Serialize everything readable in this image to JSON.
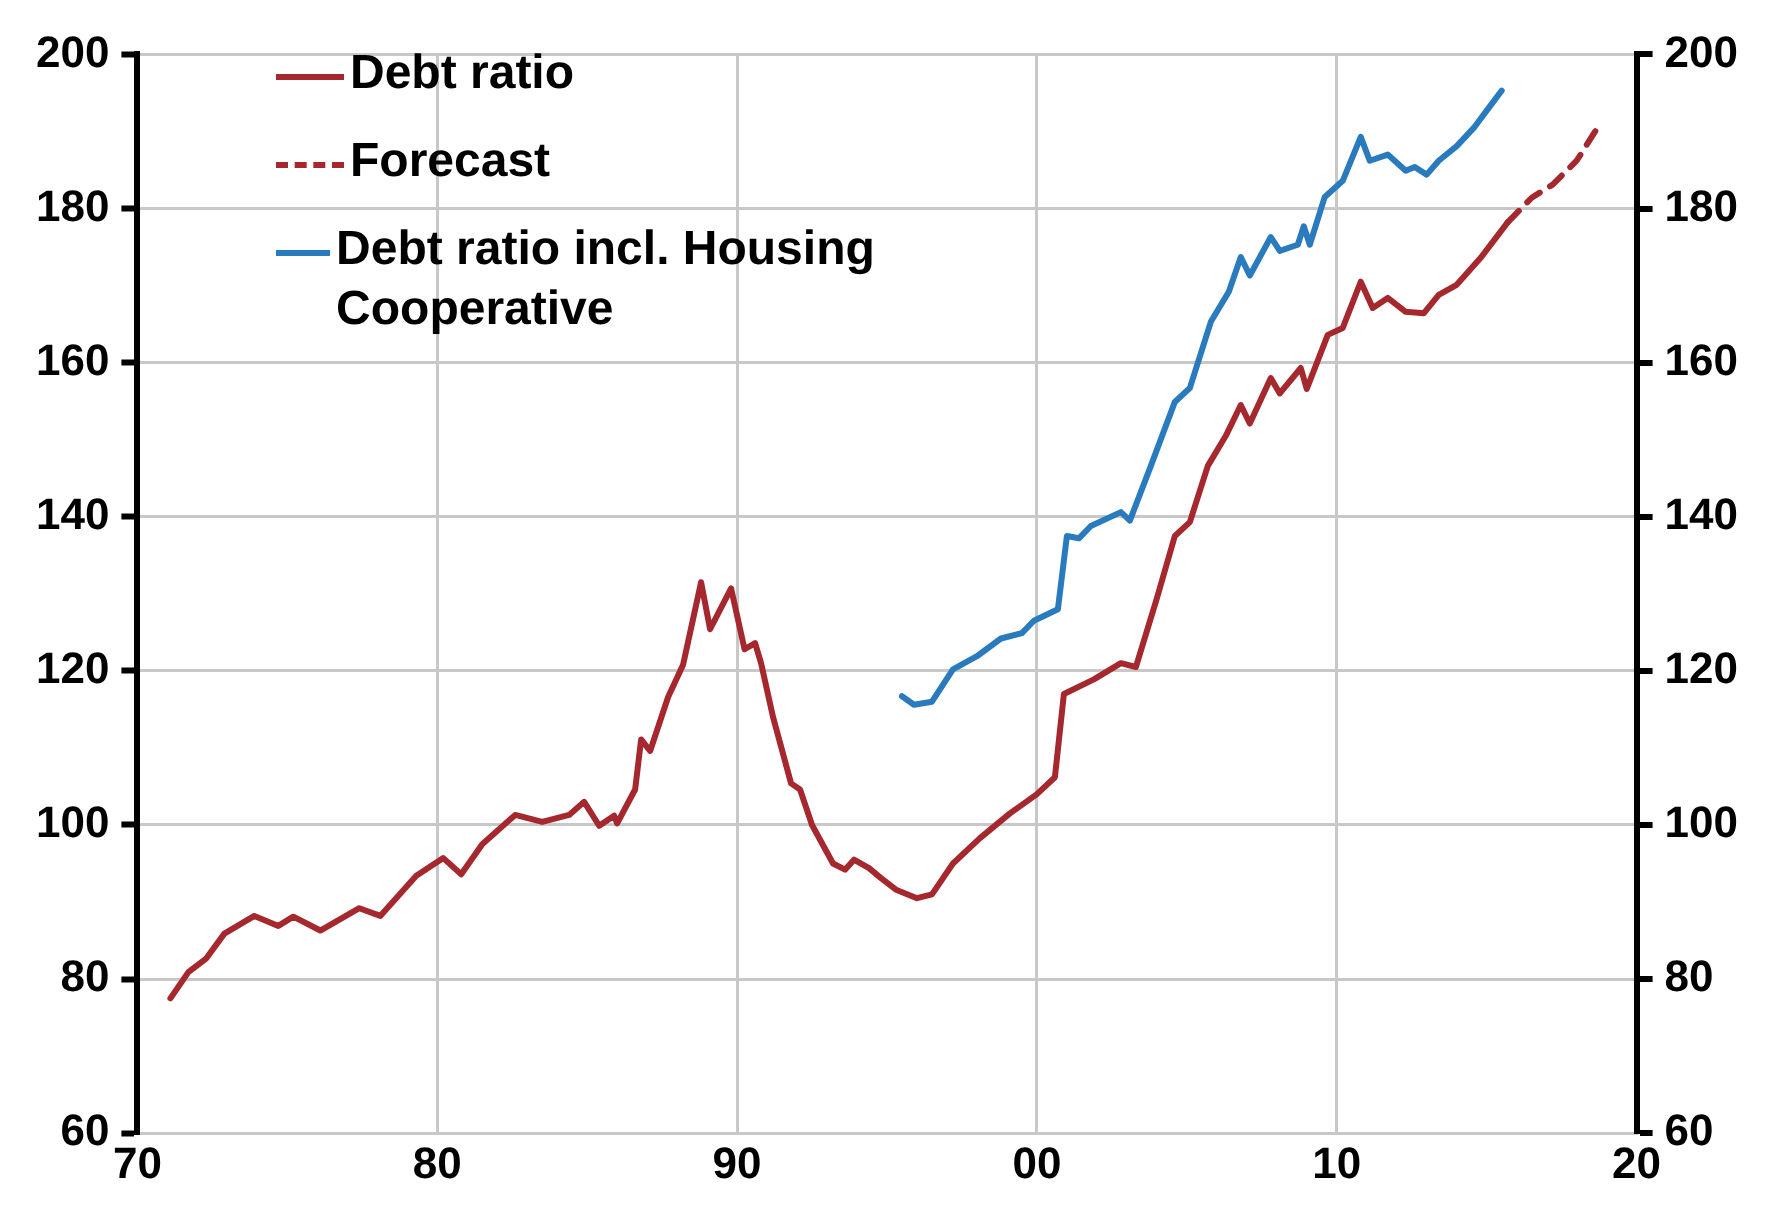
{
  "chart_data": {
    "type": "line",
    "xlim": [
      1970,
      2020
    ],
    "xticks": [
      {
        "value": 1970,
        "label": "70"
      },
      {
        "value": 1980,
        "label": "80"
      },
      {
        "value": 1990,
        "label": "90"
      },
      {
        "value": 2000,
        "label": "00"
      },
      {
        "value": 2010,
        "label": "10"
      },
      {
        "value": 2020,
        "label": "20"
      }
    ],
    "ylim": [
      60,
      200
    ],
    "yticks": [
      60,
      80,
      100,
      120,
      140,
      160,
      180,
      200
    ],
    "y2lim": [
      60,
      200
    ],
    "y2ticks": [
      60,
      80,
      100,
      120,
      140,
      160,
      180,
      200
    ],
    "grid": true,
    "legend": "top left",
    "marker": "none",
    "series": [
      {
        "name": "Debt ratio",
        "color": "#a5282e",
        "line_style": "solid",
        "x": [
          1971.1,
          1971.7,
          1972.3,
          1972.9,
          1973.9,
          1974.7,
          1975.2,
          1976.1,
          1977.4,
          1978.1,
          1979.3,
          1980.2,
          1980.8,
          1981.5,
          1982.6,
          1983.5,
          1984.4,
          1984.9,
          1985.4,
          1985.9,
          1986.0,
          1986.6,
          1986.8,
          1987.1,
          1987.7,
          1988.2,
          1988.8,
          1989.1,
          1989.8,
          1990.25,
          1990.6,
          1990.8,
          1991.2,
          1991.8,
          1992.1,
          1992.5,
          1993.2,
          1993.6,
          1993.9,
          1994.4,
          1994.8,
          1995.3,
          1996.0,
          1996.5,
          1997.2,
          1998.1,
          1999.1,
          2000.0,
          2000.6,
          2000.9,
          2001.9,
          2002.8,
          2003.3,
          2004.0,
          2004.6,
          2005.1,
          2005.7,
          2006.3,
          2006.8,
          2007.1,
          2007.8,
          2008.1,
          2008.8,
          2009.0,
          2009.7,
          2010.2,
          2010.8,
          2011.2,
          2011.7,
          2012.3,
          2012.9,
          2013.4,
          2014.0,
          2014.8,
          2015.7
        ],
        "values": [
          77.5,
          80.9,
          82.7,
          85.9,
          88.2,
          86.9,
          88.1,
          86.3,
          89.2,
          88.2,
          93.4,
          95.7,
          93.6,
          97.5,
          101.3,
          100.4,
          101.3,
          103,
          99.9,
          101.2,
          100.2,
          104.6,
          111.1,
          109.6,
          116.6,
          120.8,
          131.5,
          125.4,
          130.7,
          122.8,
          123.6,
          121,
          114,
          105.4,
          104.6,
          100,
          95,
          94.2,
          95.5,
          94.4,
          93.1,
          91.6,
          90.5,
          91,
          95,
          98.3,
          101.5,
          104,
          106.2,
          117,
          118.9,
          121,
          120.5,
          129.4,
          137.5,
          139.3,
          146.6,
          150.5,
          154.5,
          152.1,
          158,
          156,
          159.3,
          156.6,
          163.6,
          164.5,
          170.5,
          167.1,
          168.4,
          166.6,
          166.4,
          168.8,
          170.1,
          173.6,
          178.2
        ]
      },
      {
        "name": "Forecast",
        "color": "#a5282e",
        "line_style": "dashed",
        "x": [
          2015.7,
          2016.5,
          2017.2,
          2018.0,
          2018.7
        ],
        "values": [
          178.2,
          181.4,
          183.1,
          186.2,
          190.5
        ]
      },
      {
        "name": "Debt ratio incl. Housing Cooperative",
        "color": "#2a7bbd",
        "line_style": "solid",
        "x": [
          1995.5,
          1995.9,
          1996.5,
          1997.2,
          1998.0,
          1998.8,
          1999.5,
          1999.9,
          2000.7,
          2001.0,
          2001.4,
          2001.8,
          2002.8,
          2003.1,
          2003.8,
          2004.6,
          2005.1,
          2005.8,
          2006.4,
          2006.8,
          2007.1,
          2007.8,
          2008.1,
          2008.7,
          2008.9,
          2009.1,
          2009.6,
          2010.2,
          2010.8,
          2011.1,
          2011.7,
          2012.3,
          2012.6,
          2013.0,
          2013.4,
          2014.0,
          2014.6,
          2015.0,
          2015.5
        ],
        "values": [
          116.7,
          115.6,
          116,
          120.2,
          121.9,
          124.2,
          124.9,
          126.5,
          128,
          137.5,
          137.2,
          138.8,
          140.6,
          139.5,
          146.6,
          154.9,
          156.7,
          165.3,
          169.2,
          173.7,
          171.3,
          176.3,
          174.5,
          175.3,
          177.7,
          175.3,
          181.5,
          183.6,
          189.3,
          186.2,
          187,
          184.9,
          185.4,
          184.4,
          186.2,
          188.1,
          190.6,
          192.7,
          195.3
        ]
      }
    ]
  }
}
